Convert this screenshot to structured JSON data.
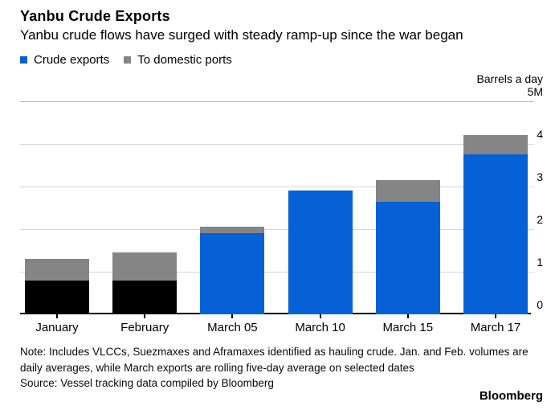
{
  "header": {
    "title": "Yanbu Crude Exports",
    "subtitle": "Yanbu crude flows have surged with steady ramp-up since the war began"
  },
  "legend": {
    "items": [
      {
        "label": "Crude exports",
        "color": "#0561d5"
      },
      {
        "label": "To domestic ports",
        "color": "#858585"
      }
    ]
  },
  "axis_unit": "Barrels a day",
  "chart_data": {
    "type": "bar",
    "stacked": true,
    "title": "Yanbu Crude Exports",
    "subtitle": "Yanbu crude flows have surged with steady ramp-up since the war began",
    "ylabel": "Barrels a day",
    "ylim": [
      0,
      5
    ],
    "grid": "horizontal",
    "legend_position": "top-left",
    "categories": [
      "January",
      "February",
      "March 05",
      "March 10",
      "March 15",
      "March 17"
    ],
    "series": [
      {
        "name": "Crude exports",
        "values": [
          0.8,
          0.8,
          1.9,
          2.9,
          2.65,
          3.75
        ],
        "colors": [
          "#000000",
          "#000000",
          "#0561d5",
          "#0561d5",
          "#0561d5",
          "#0561d5"
        ]
      },
      {
        "name": "To domestic ports",
        "values": [
          0.5,
          0.65,
          0.15,
          0,
          0.5,
          0.45
        ],
        "colors": [
          "#858585",
          "#858585",
          "#858585",
          "#858585",
          "#858585",
          "#858585"
        ]
      }
    ],
    "y_ticks": [
      {
        "value": 5,
        "label": "5M"
      },
      {
        "value": 4,
        "label": "4"
      },
      {
        "value": 3,
        "label": "3"
      },
      {
        "value": 2,
        "label": "2"
      },
      {
        "value": 1,
        "label": "1"
      },
      {
        "value": 0,
        "label": "0"
      }
    ]
  },
  "footer": {
    "note_lines": [
      "Note: Includes VLCCs, Suezmaxes and Aframaxes identified as hauling crude. Jan. and Feb. volumes are",
      "daily averages, while March exports are rolling five-day average on selected dates"
    ],
    "source": "Source: Vessel tracking data compiled by Bloomberg",
    "brand": "Bloomberg"
  },
  "colors": {
    "export_blue": "#0561d5",
    "export_black": "#000000",
    "domestic_gray": "#858585",
    "gridline": "#d6d6d6",
    "top_gridline": "#b3b3b3",
    "axis": "#000000"
  }
}
